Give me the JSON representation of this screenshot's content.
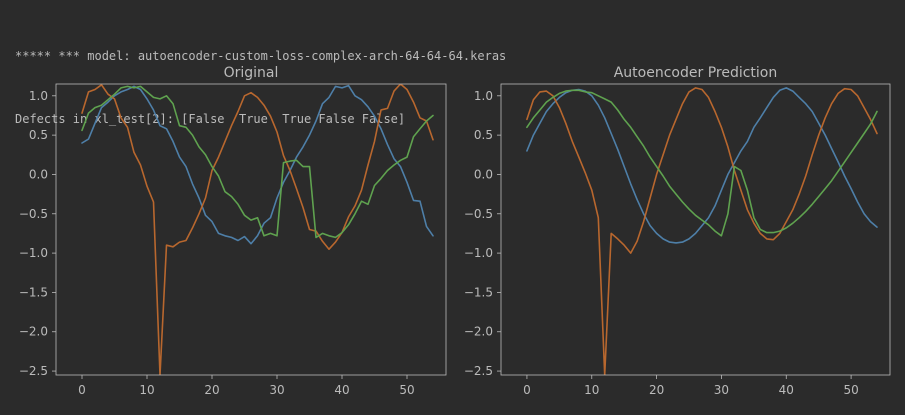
{
  "output": {
    "line1": "***** *** model: autoencoder-custom-loss-complex-arch-64-64-64.keras",
    "line2": "Defects in xl_test[2]: [False  True  True False False]"
  },
  "colors": {
    "background": "#2b2b2b",
    "text": "#bbbbbb",
    "series": [
      "#4e7fa8",
      "#b8672e",
      "#5fa24f"
    ]
  },
  "chart_data": [
    {
      "type": "line",
      "title": "Original",
      "xlim": [
        -4,
        56
      ],
      "ylim": [
        -2.55,
        1.15
      ],
      "xticks": [
        0,
        10,
        20,
        30,
        40,
        50
      ],
      "yticks": [
        1.0,
        0.5,
        0.0,
        -0.5,
        -1.0,
        -1.5,
        -2.0,
        -2.5
      ],
      "ytick_labels": [
        "1.0",
        "0.5",
        "0.0",
        "−0.5",
        "−1.0",
        "−1.5",
        "−2.0",
        "−2.5"
      ],
      "grid": false,
      "series": [
        {
          "color": "#4e7fa8",
          "x": [
            0,
            1,
            2,
            3,
            4,
            5,
            6,
            7,
            8,
            9,
            10,
            11,
            12,
            13,
            14,
            15,
            16,
            17,
            18,
            19,
            20,
            21,
            22,
            23,
            24,
            25,
            26,
            27,
            28,
            29,
            30,
            31,
            32,
            33,
            34,
            35,
            36,
            37,
            38,
            39,
            40,
            41,
            42,
            43,
            44,
            45,
            46,
            47,
            48,
            49,
            50,
            51,
            52,
            53,
            54
          ],
          "values": [
            0.4,
            0.45,
            0.65,
            0.85,
            0.92,
            1.0,
            1.05,
            1.08,
            1.12,
            1.08,
            0.96,
            0.82,
            0.62,
            0.58,
            0.42,
            0.22,
            0.1,
            -0.12,
            -0.3,
            -0.52,
            -0.6,
            -0.75,
            -0.78,
            -0.8,
            -0.84,
            -0.79,
            -0.88,
            -0.78,
            -0.62,
            -0.55,
            -0.3,
            -0.1,
            0.05,
            0.22,
            0.35,
            0.5,
            0.68,
            0.9,
            0.98,
            1.12,
            1.1,
            1.13,
            1.0,
            0.95,
            0.86,
            0.74,
            0.58,
            0.38,
            0.2,
            0.1,
            -0.1,
            -0.33,
            -0.34,
            -0.66,
            -0.78
          ]
        },
        {
          "color": "#b8672e",
          "x": [
            0,
            1,
            2,
            3,
            4,
            5,
            6,
            7,
            8,
            9,
            10,
            11,
            12,
            13,
            14,
            15,
            16,
            17,
            18,
            19,
            20,
            21,
            22,
            23,
            24,
            25,
            26,
            27,
            28,
            29,
            30,
            31,
            32,
            33,
            34,
            35,
            36,
            37,
            38,
            39,
            40,
            41,
            42,
            43,
            44,
            45,
            46,
            47,
            48,
            49,
            50,
            51,
            52,
            53,
            54
          ],
          "values": [
            0.78,
            1.05,
            1.08,
            1.14,
            1.02,
            0.96,
            0.72,
            0.6,
            0.28,
            0.12,
            -0.15,
            -0.35,
            -2.55,
            -0.9,
            -0.92,
            -0.86,
            -0.84,
            -0.68,
            -0.5,
            -0.3,
            0.05,
            0.22,
            0.42,
            0.62,
            0.8,
            1.0,
            1.04,
            0.98,
            0.88,
            0.74,
            0.54,
            0.24,
            0.05,
            -0.18,
            -0.42,
            -0.7,
            -0.72,
            -0.85,
            -0.95,
            -0.86,
            -0.74,
            -0.54,
            -0.4,
            -0.2,
            0.12,
            0.42,
            0.82,
            0.84,
            1.06,
            1.15,
            1.08,
            0.92,
            0.72,
            0.68,
            0.44
          ]
        },
        {
          "color": "#5fa24f",
          "x": [
            0,
            1,
            2,
            3,
            4,
            5,
            6,
            7,
            8,
            9,
            10,
            11,
            12,
            13,
            14,
            15,
            16,
            17,
            18,
            19,
            20,
            21,
            22,
            23,
            24,
            25,
            26,
            27,
            28,
            29,
            30,
            31,
            32,
            33,
            34,
            35,
            36,
            37,
            38,
            39,
            40,
            41,
            42,
            43,
            44,
            45,
            46,
            47,
            48,
            49,
            50,
            51,
            52,
            53,
            54
          ],
          "values": [
            0.56,
            0.78,
            0.85,
            0.88,
            0.95,
            1.02,
            1.1,
            1.12,
            1.1,
            1.12,
            1.05,
            0.98,
            0.96,
            1.0,
            0.9,
            0.62,
            0.6,
            0.5,
            0.35,
            0.25,
            0.1,
            -0.02,
            -0.22,
            -0.28,
            -0.38,
            -0.52,
            -0.58,
            -0.55,
            -0.78,
            -0.75,
            -0.78,
            0.15,
            0.17,
            0.18,
            0.1,
            0.1,
            -0.8,
            -0.75,
            -0.78,
            -0.8,
            -0.74,
            -0.64,
            -0.5,
            -0.34,
            -0.38,
            -0.14,
            -0.05,
            0.05,
            0.12,
            0.18,
            0.22,
            0.48,
            0.58,
            0.68,
            0.75
          ]
        }
      ]
    },
    {
      "type": "line",
      "title": "Autoencoder Prediction",
      "xlim": [
        -4,
        56
      ],
      "ylim": [
        -2.55,
        1.15
      ],
      "xticks": [
        0,
        10,
        20,
        30,
        40,
        50
      ],
      "yticks": [
        1.0,
        0.5,
        0.0,
        -0.5,
        -1.0,
        -1.5,
        -2.0,
        -2.5
      ],
      "ytick_labels": [
        "1.0",
        "0.5",
        "0.0",
        "−0.5",
        "−1.0",
        "−1.5",
        "−2.0",
        "−2.5"
      ],
      "grid": false,
      "series": [
        {
          "color": "#4e7fa8",
          "x": [
            0,
            1,
            2,
            3,
            4,
            5,
            6,
            7,
            8,
            9,
            10,
            11,
            12,
            13,
            14,
            15,
            16,
            17,
            18,
            19,
            20,
            21,
            22,
            23,
            24,
            25,
            26,
            27,
            28,
            29,
            30,
            31,
            32,
            33,
            34,
            35,
            36,
            37,
            38,
            39,
            40,
            41,
            42,
            43,
            44,
            45,
            46,
            47,
            48,
            49,
            50,
            51,
            52,
            53,
            54
          ],
          "values": [
            0.3,
            0.5,
            0.65,
            0.8,
            0.9,
            0.98,
            1.04,
            1.07,
            1.08,
            1.06,
            1.0,
            0.88,
            0.72,
            0.52,
            0.32,
            0.1,
            -0.12,
            -0.32,
            -0.5,
            -0.65,
            -0.75,
            -0.82,
            -0.86,
            -0.87,
            -0.86,
            -0.82,
            -0.75,
            -0.65,
            -0.55,
            -0.4,
            -0.2,
            0.0,
            0.15,
            0.3,
            0.42,
            0.6,
            0.72,
            0.85,
            0.98,
            1.07,
            1.1,
            1.06,
            0.98,
            0.9,
            0.8,
            0.65,
            0.5,
            0.33,
            0.16,
            -0.02,
            -0.18,
            -0.35,
            -0.5,
            -0.6,
            -0.67
          ]
        },
        {
          "color": "#b8672e",
          "x": [
            0,
            1,
            2,
            3,
            4,
            5,
            6,
            7,
            8,
            9,
            10,
            11,
            12,
            13,
            14,
            15,
            16,
            17,
            18,
            19,
            20,
            21,
            22,
            23,
            24,
            25,
            26,
            27,
            28,
            29,
            30,
            31,
            32,
            33,
            34,
            35,
            36,
            37,
            38,
            39,
            40,
            41,
            42,
            43,
            44,
            45,
            46,
            47,
            48,
            49,
            50,
            51,
            52,
            53,
            54
          ],
          "values": [
            0.7,
            0.95,
            1.05,
            1.06,
            1.0,
            0.85,
            0.65,
            0.42,
            0.22,
            0.02,
            -0.2,
            -0.55,
            -2.55,
            -0.75,
            -0.82,
            -0.9,
            -1.0,
            -0.85,
            -0.6,
            -0.3,
            0.0,
            0.25,
            0.5,
            0.7,
            0.9,
            1.05,
            1.1,
            1.08,
            0.98,
            0.8,
            0.6,
            0.35,
            0.05,
            -0.2,
            -0.45,
            -0.62,
            -0.75,
            -0.82,
            -0.83,
            -0.75,
            -0.6,
            -0.45,
            -0.25,
            -0.02,
            0.25,
            0.5,
            0.72,
            0.9,
            1.03,
            1.09,
            1.08,
            1.0,
            0.85,
            0.7,
            0.52
          ]
        },
        {
          "color": "#5fa24f",
          "x": [
            0,
            1,
            2,
            3,
            4,
            5,
            6,
            7,
            8,
            9,
            10,
            11,
            12,
            13,
            14,
            15,
            16,
            17,
            18,
            19,
            20,
            21,
            22,
            23,
            24,
            25,
            26,
            27,
            28,
            29,
            30,
            31,
            32,
            33,
            34,
            35,
            36,
            37,
            38,
            39,
            40,
            41,
            42,
            43,
            44,
            45,
            46,
            47,
            48,
            49,
            50,
            51,
            52,
            53,
            54
          ],
          "values": [
            0.6,
            0.72,
            0.82,
            0.92,
            0.98,
            1.03,
            1.06,
            1.07,
            1.07,
            1.05,
            1.04,
            1.0,
            0.96,
            0.92,
            0.82,
            0.7,
            0.6,
            0.48,
            0.36,
            0.22,
            0.1,
            -0.02,
            -0.15,
            -0.25,
            -0.35,
            -0.44,
            -0.52,
            -0.58,
            -0.64,
            -0.72,
            -0.78,
            -0.5,
            0.1,
            0.05,
            -0.2,
            -0.55,
            -0.7,
            -0.74,
            -0.74,
            -0.72,
            -0.68,
            -0.62,
            -0.55,
            -0.47,
            -0.38,
            -0.28,
            -0.18,
            -0.08,
            0.04,
            0.16,
            0.28,
            0.4,
            0.52,
            0.64,
            0.8
          ]
        }
      ]
    }
  ]
}
